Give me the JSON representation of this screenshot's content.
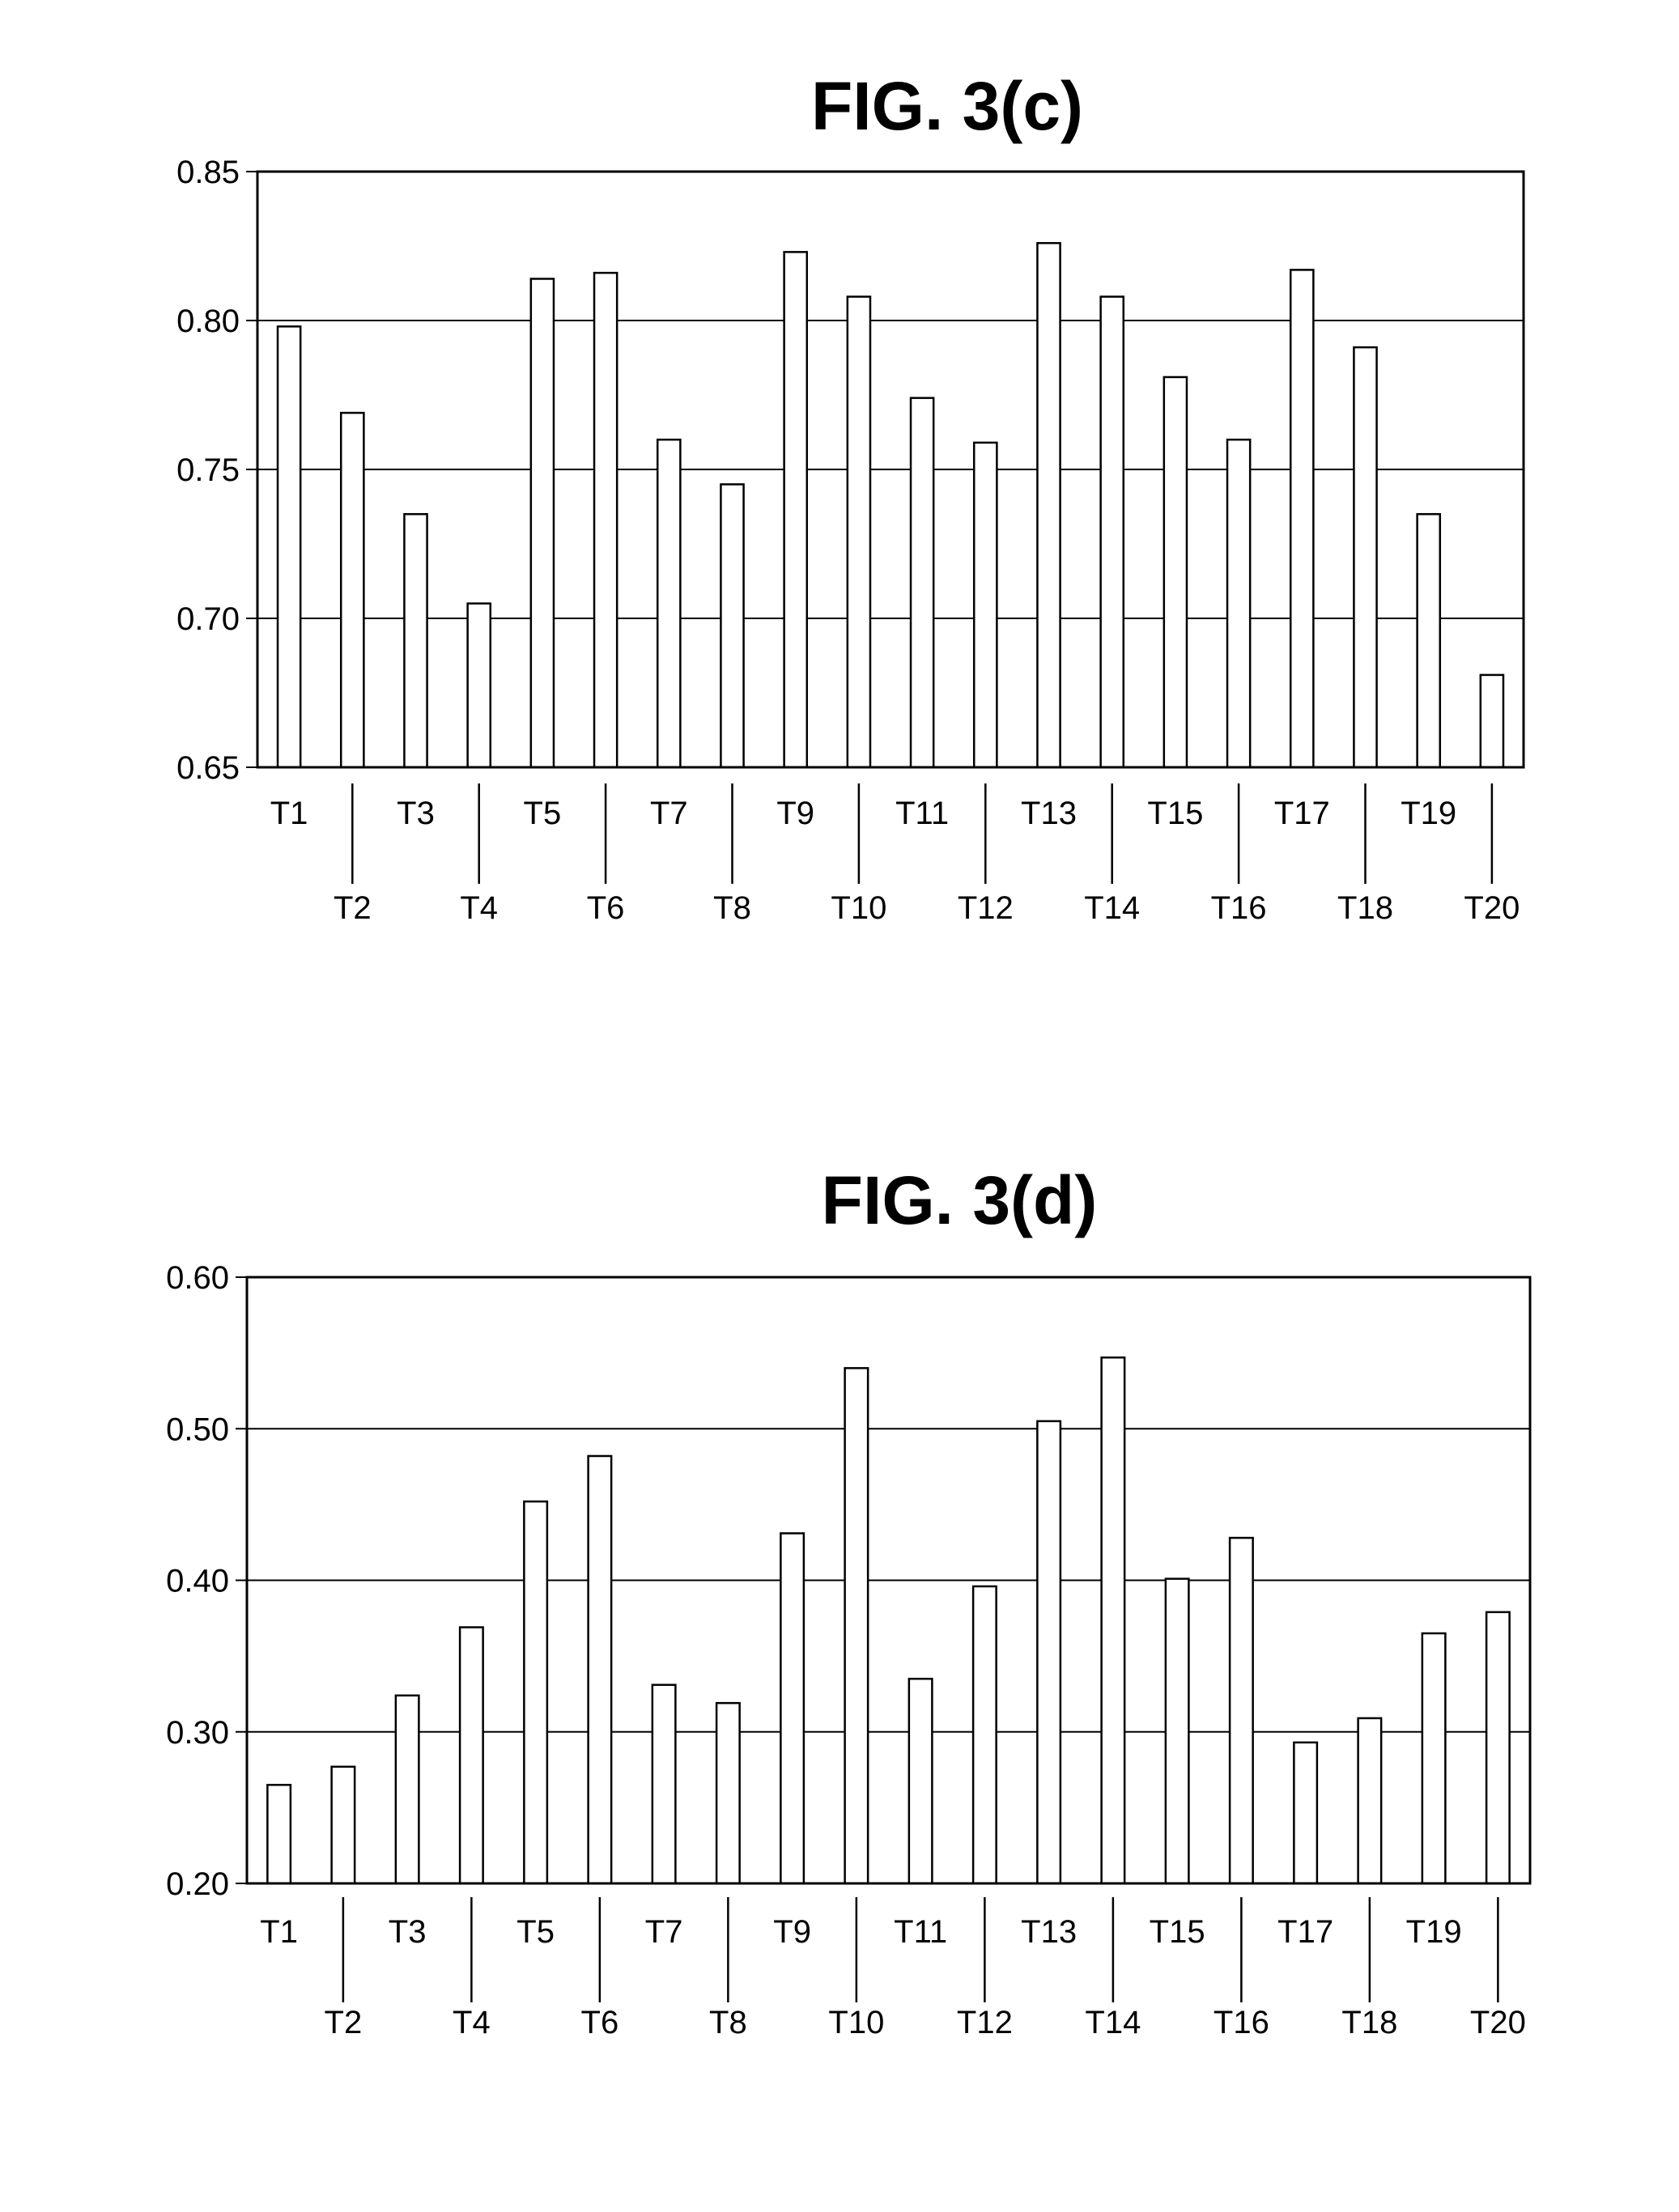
{
  "chart_data": [
    {
      "type": "bar",
      "title": "FIG. 3(c)",
      "categories": [
        "T1",
        "T2",
        "T3",
        "T4",
        "T5",
        "T6",
        "T7",
        "T8",
        "T9",
        "T10",
        "T11",
        "T12",
        "T13",
        "T14",
        "T15",
        "T16",
        "T17",
        "T18",
        "T19",
        "T20"
      ],
      "values": [
        0.798,
        0.769,
        0.735,
        0.705,
        0.814,
        0.816,
        0.76,
        0.745,
        0.823,
        0.808,
        0.774,
        0.759,
        0.826,
        0.808,
        0.781,
        0.76,
        0.817,
        0.791,
        0.735,
        0.681
      ],
      "ylim": [
        0.65,
        0.85
      ],
      "yticks": [
        "0.65",
        "0.70",
        "0.75",
        "0.80",
        "0.85"
      ],
      "xlabel": "",
      "ylabel": "",
      "grid": true,
      "legend": "none"
    },
    {
      "type": "bar",
      "title": "FIG. 3(d)",
      "categories": [
        "T1",
        "T2",
        "T3",
        "T4",
        "T5",
        "T6",
        "T7",
        "T8",
        "T9",
        "T10",
        "T11",
        "T12",
        "T13",
        "T14",
        "T15",
        "T16",
        "T17",
        "T18",
        "T19",
        "T20"
      ],
      "values": [
        0.265,
        0.277,
        0.324,
        0.369,
        0.452,
        0.482,
        0.331,
        0.319,
        0.431,
        0.54,
        0.335,
        0.396,
        0.505,
        0.547,
        0.401,
        0.428,
        0.293,
        0.309,
        0.365,
        0.379
      ],
      "ylim": [
        0.2,
        0.6
      ],
      "yticks": [
        "0.20",
        "0.30",
        "0.40",
        "0.50",
        "0.60"
      ],
      "xlabel": "",
      "ylabel": "",
      "grid": true,
      "legend": "none"
    }
  ]
}
